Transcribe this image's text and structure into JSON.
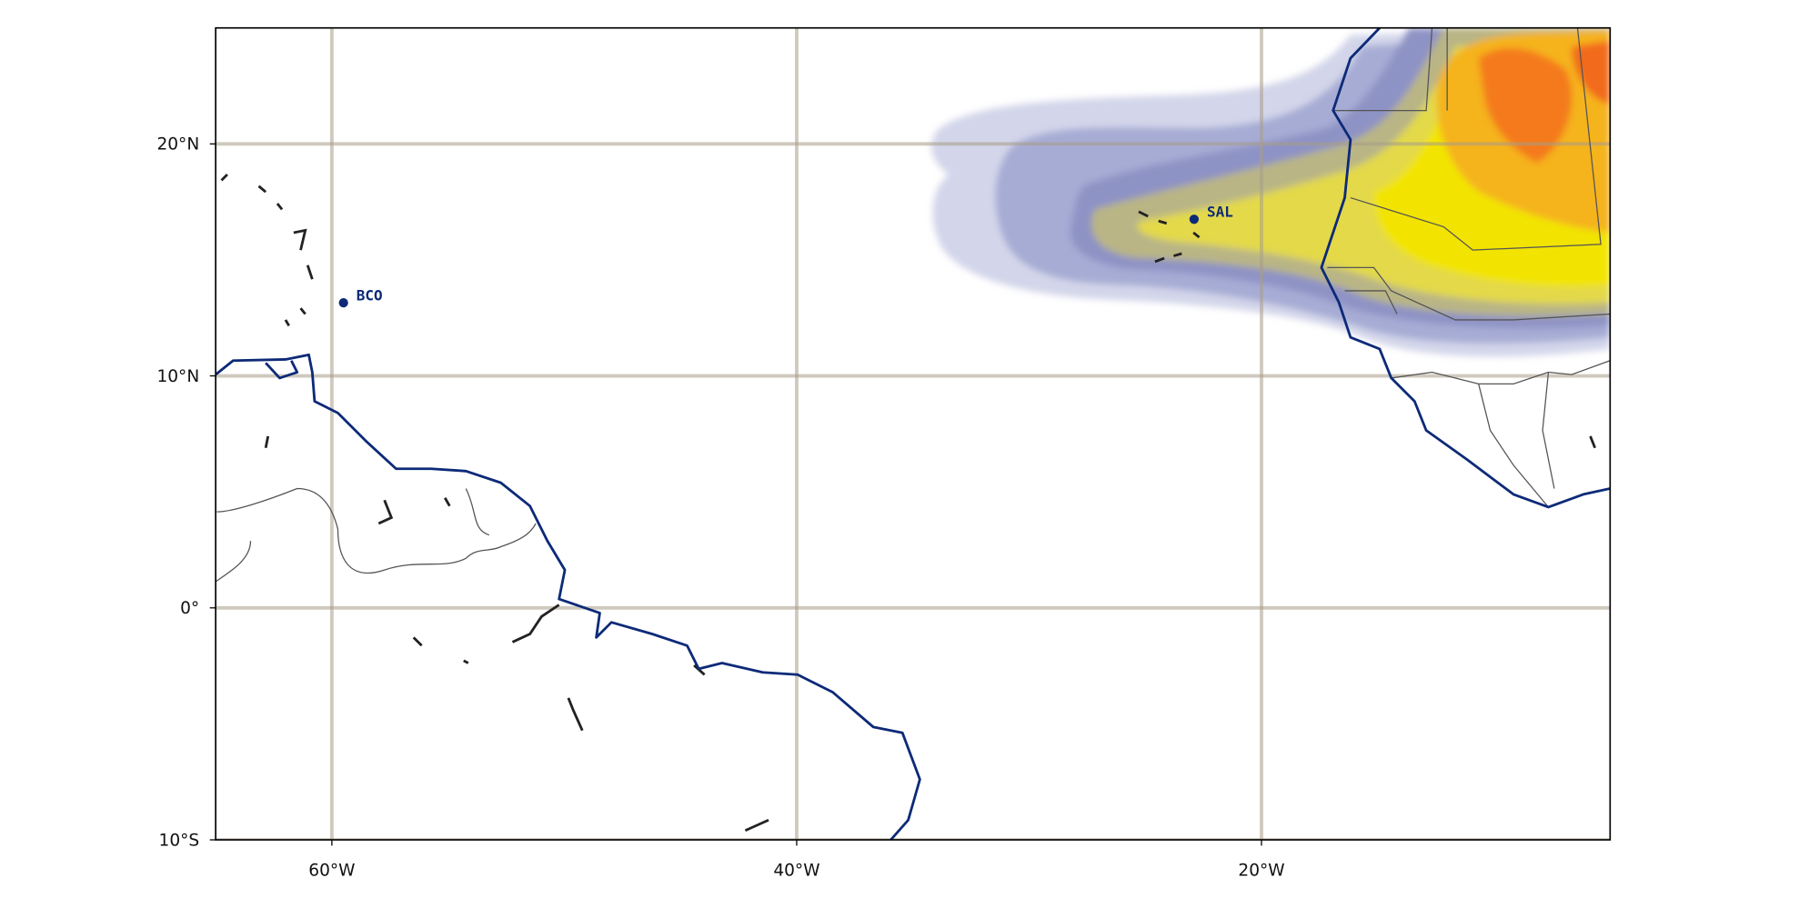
{
  "chart_data": {
    "type": "map",
    "xlim": [
      -65,
      -5
    ],
    "ylim": [
      -10,
      25
    ],
    "xticks": [
      {
        "value": -60,
        "label": "60°W"
      },
      {
        "value": -40,
        "label": "40°W"
      },
      {
        "value": -20,
        "label": "20°W"
      }
    ],
    "yticks": [
      {
        "value": -10,
        "label": "10°S"
      },
      {
        "value": 0,
        "label": "0°"
      },
      {
        "value": 10,
        "label": "10°N"
      },
      {
        "value": 20,
        "label": "20°N"
      }
    ],
    "grid": true,
    "stations": {
      "names": [
        "BCO",
        "SAL"
      ],
      "lon": [
        -59.5,
        -22.9
      ],
      "lat": [
        13.15,
        16.75
      ],
      "color": "#0d2a78"
    }
  }
}
